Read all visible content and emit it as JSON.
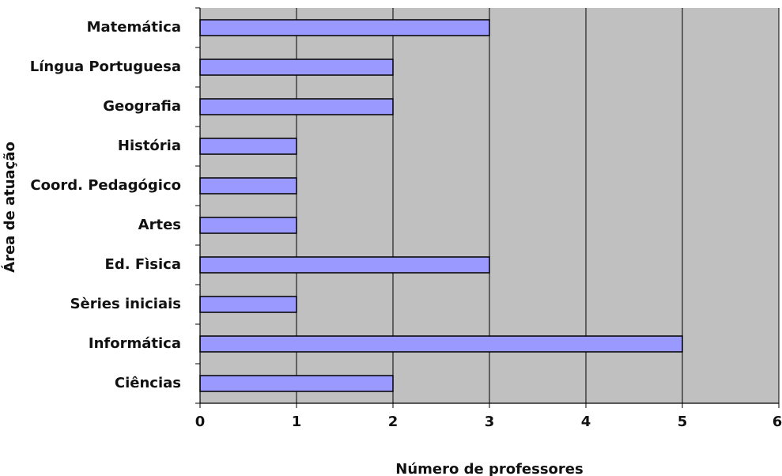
{
  "chart_data": {
    "type": "bar",
    "orientation": "horizontal",
    "title": "",
    "xlabel": "Número de professores",
    "ylabel": "Área de atuação",
    "categories": [
      "Matemática",
      "Língua Portuguesa",
      "Geografia",
      "História",
      "Coord. Pedagógico",
      "Artes",
      "Ed. Fìsica",
      "Sèries iniciais",
      "Informática",
      "Ciências"
    ],
    "values": [
      3,
      2,
      2,
      1,
      1,
      1,
      3,
      1,
      5,
      2
    ],
    "xlim": [
      0,
      6
    ],
    "xticks": [
      "0",
      "1",
      "2",
      "3",
      "4",
      "5",
      "6"
    ],
    "grid": true,
    "legend": false,
    "colors": {
      "bar": "#9999ff",
      "plot_background": "#c0c0c0"
    }
  }
}
